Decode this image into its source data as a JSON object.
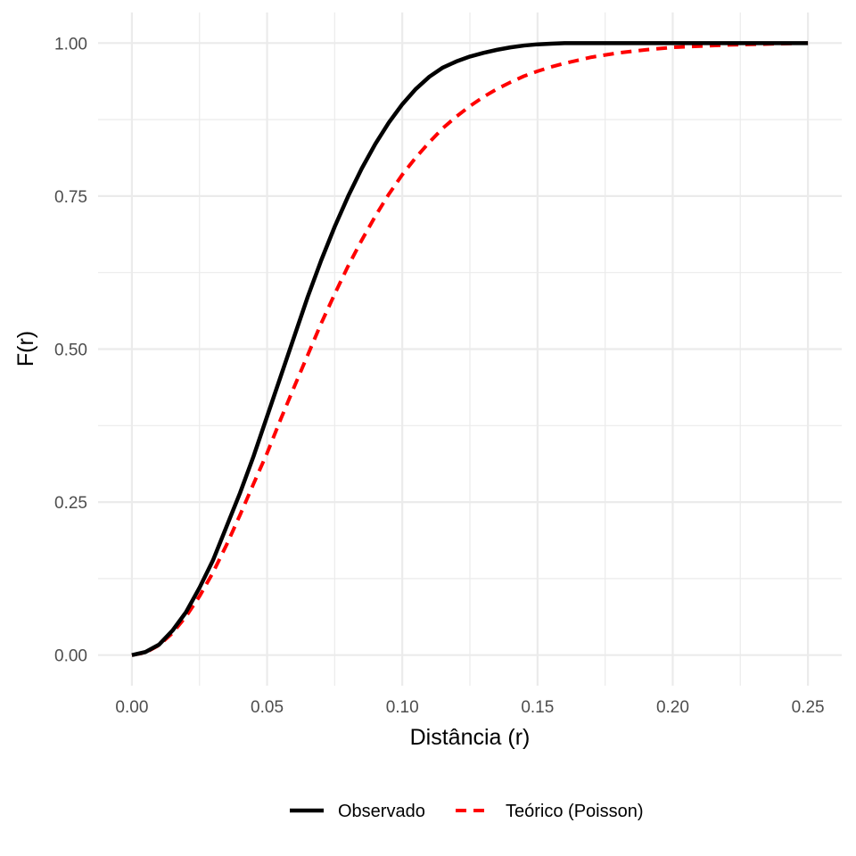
{
  "chart_data": {
    "type": "line",
    "xlabel": "Distância (r)",
    "ylabel": "F(r)",
    "xlim": [
      -0.0125,
      0.2625
    ],
    "ylim": [
      -0.05,
      1.05
    ],
    "x_ticks": [
      0.0,
      0.05,
      0.1,
      0.15,
      0.2,
      0.25
    ],
    "x_tick_labels": [
      "0.00",
      "0.05",
      "0.10",
      "0.15",
      "0.20",
      "0.25"
    ],
    "y_ticks": [
      0.0,
      0.25,
      0.5,
      0.75,
      1.0
    ],
    "y_tick_labels": [
      "0.00",
      "0.25",
      "0.50",
      "0.75",
      "1.00"
    ],
    "grid": true,
    "legend_position": "bottom",
    "series": [
      {
        "name": "Observado",
        "color": "#000000",
        "dash": "solid",
        "x": [
          0,
          0.005,
          0.01,
          0.015,
          0.02,
          0.025,
          0.03,
          0.035,
          0.04,
          0.045,
          0.05,
          0.055,
          0.06,
          0.065,
          0.07,
          0.075,
          0.08,
          0.085,
          0.09,
          0.095,
          0.1,
          0.105,
          0.11,
          0.115,
          0.12,
          0.125,
          0.13,
          0.135,
          0.14,
          0.145,
          0.15,
          0.155,
          0.16,
          0.165,
          0.17,
          0.2,
          0.25
        ],
        "y": [
          0,
          0.005,
          0.017,
          0.04,
          0.07,
          0.11,
          0.155,
          0.21,
          0.265,
          0.325,
          0.39,
          0.455,
          0.52,
          0.585,
          0.645,
          0.7,
          0.75,
          0.795,
          0.835,
          0.87,
          0.9,
          0.925,
          0.945,
          0.96,
          0.97,
          0.978,
          0.984,
          0.989,
          0.993,
          0.996,
          0.998,
          0.999,
          1.0,
          1.0,
          1.0,
          1.0,
          1.0
        ]
      },
      {
        "name": "Teórico (Poisson)",
        "color": "#ff0000",
        "dash": "dashed",
        "x": [
          0,
          0.005,
          0.01,
          0.015,
          0.02,
          0.025,
          0.03,
          0.035,
          0.04,
          0.045,
          0.05,
          0.055,
          0.06,
          0.065,
          0.07,
          0.075,
          0.08,
          0.085,
          0.09,
          0.095,
          0.1,
          0.105,
          0.11,
          0.115,
          0.12,
          0.125,
          0.13,
          0.135,
          0.14,
          0.145,
          0.15,
          0.155,
          0.16,
          0.165,
          0.17,
          0.18,
          0.19,
          0.2,
          0.22,
          0.25
        ],
        "y": [
          0,
          0.004,
          0.016,
          0.036,
          0.063,
          0.096,
          0.135,
          0.18,
          0.229,
          0.28,
          0.33,
          0.385,
          0.438,
          0.49,
          0.542,
          0.59,
          0.636,
          0.678,
          0.717,
          0.753,
          0.785,
          0.813,
          0.838,
          0.861,
          0.88,
          0.897,
          0.912,
          0.925,
          0.936,
          0.946,
          0.954,
          0.961,
          0.967,
          0.972,
          0.977,
          0.984,
          0.989,
          0.993,
          0.997,
          1.0
        ]
      }
    ]
  }
}
